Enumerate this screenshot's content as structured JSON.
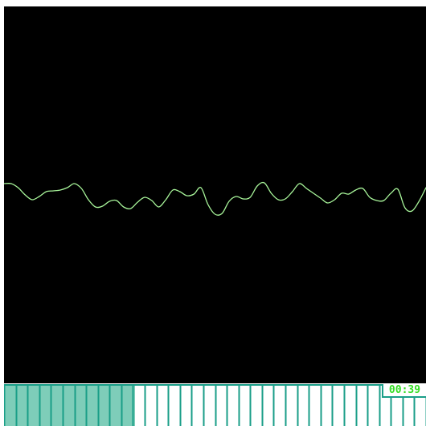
{
  "timer": {
    "elapsed": "00:39"
  },
  "progress": {
    "filled_fraction": 0.31,
    "segment_count": 36
  },
  "colors": {
    "screen_background": "#000000",
    "trace": "#a8f59a",
    "segment_stroke": "#1a9e88",
    "segment_fill": "#7ecdb9",
    "timer_text": "#33dd22"
  },
  "waveform": {
    "samples": [
      0.0,
      0.0,
      -0.05,
      -0.14,
      -0.2,
      -0.16,
      -0.1,
      -0.09,
      -0.08,
      -0.05,
      0.0,
      -0.06,
      -0.2,
      -0.29,
      -0.28,
      -0.22,
      -0.21,
      -0.29,
      -0.31,
      -0.23,
      -0.17,
      -0.21,
      -0.29,
      -0.2,
      -0.08,
      -0.1,
      -0.15,
      -0.13,
      -0.05,
      -0.26,
      -0.38,
      -0.37,
      -0.22,
      -0.16,
      -0.19,
      -0.17,
      -0.03,
      0.01,
      -0.12,
      -0.2,
      -0.19,
      -0.1,
      0.0,
      -0.06,
      -0.12,
      -0.18,
      -0.24,
      -0.2,
      -0.12,
      -0.13,
      -0.08,
      -0.06,
      -0.17,
      -0.21,
      -0.21,
      -0.12,
      -0.07,
      -0.3,
      -0.34,
      -0.22,
      -0.05
    ],
    "amplitude_range": [
      -1,
      1
    ]
  }
}
